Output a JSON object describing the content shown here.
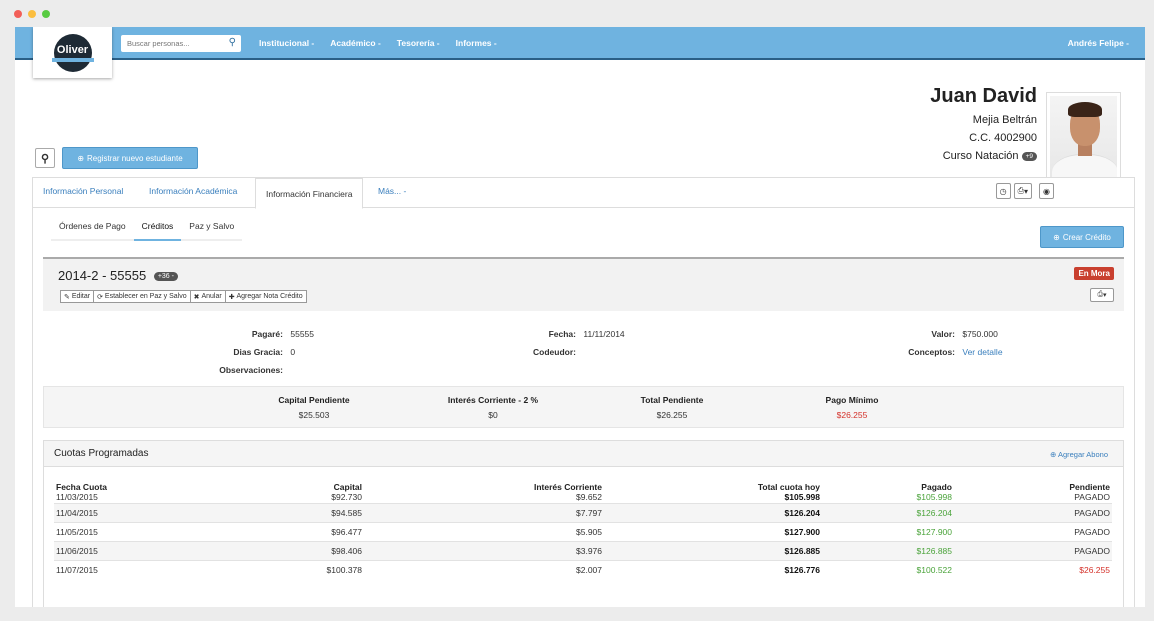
{
  "window_dots": [
    {
      "color": "#f25f58"
    },
    {
      "color": "#fbbe3f"
    },
    {
      "color": "#58cb42"
    }
  ],
  "navbar": {
    "logo_text": "Oliver",
    "search_placeholder": "Buscar personas...",
    "items": [
      {
        "label": "Institucional -"
      },
      {
        "label": "Académico -"
      },
      {
        "label": "Tesorería -"
      },
      {
        "label": "Informes -"
      }
    ],
    "user": "Andrés Felipe -"
  },
  "toolbar": {
    "register_label": "Registrar nuevo estudiante"
  },
  "profile": {
    "first_name": "Juan David",
    "last_name": "Mejia Beltrán",
    "id": "C.C. 4002900",
    "course": "Curso Natación",
    "course_badge": "+9"
  },
  "tabs": [
    {
      "label": "Información Personal"
    },
    {
      "label": "Información Académica"
    },
    {
      "label": "Información Financiera"
    },
    {
      "label": "Más... -"
    }
  ],
  "subtabs": [
    {
      "label": "Órdenes de Pago"
    },
    {
      "label": "Créditos"
    },
    {
      "label": "Paz y Salvo"
    }
  ],
  "crear_credito": "Crear Crédito",
  "credit": {
    "title": "2014-2 - 55555",
    "badge": "+36 -",
    "status": "En Mora",
    "actions": [
      {
        "label": "Editar"
      },
      {
        "label": "Establecer en Paz y Salvo"
      },
      {
        "label": "Anular"
      },
      {
        "label": "Agregar Nota Crédito"
      }
    ],
    "fields": {
      "pagare_label": "Pagaré:",
      "pagare": "55555",
      "dias_label": "Dias Gracia:",
      "dias": "0",
      "obs_label": "Observaciones:",
      "fecha_label": "Fecha:",
      "fecha": "11/11/2014",
      "codeudor_label": "Codeudor:",
      "valor_label": "Valor:",
      "valor": "$750.000",
      "conceptos_label": "Conceptos:",
      "conceptos": "Ver detalle"
    },
    "summary": [
      {
        "label": "Capital Pendiente",
        "value": "$25.503"
      },
      {
        "label": "Interés Corriente - 2 %",
        "value": "$0"
      },
      {
        "label": "Total Pendiente",
        "value": "$26.255"
      },
      {
        "label": "Pago Mínimo",
        "value": "$26.255"
      }
    ]
  },
  "cuotas": {
    "title": "Cuotas Programadas",
    "add": "Agregar Abono",
    "headers": [
      "Fecha Cuota",
      "Capital",
      "Interés Corriente",
      "Total cuota hoy",
      "Pagado",
      "Pendiente"
    ],
    "rows": [
      [
        "11/03/2015",
        "$92.730",
        "$9.652",
        "$105.998",
        "$105.998",
        "PAGADO"
      ],
      [
        "11/04/2015",
        "$94.585",
        "$7.797",
        "$126.204",
        "$126.204",
        "PAGADO"
      ],
      [
        "11/05/2015",
        "$96.477",
        "$5.905",
        "$127.900",
        "$127.900",
        "PAGADO"
      ],
      [
        "11/06/2015",
        "$98.406",
        "$3.976",
        "$126.885",
        "$126.885",
        "PAGADO"
      ],
      [
        "11/07/2015",
        "$100.378",
        "$2.007",
        "$126.776",
        "$100.522",
        "$26.255"
      ]
    ]
  }
}
